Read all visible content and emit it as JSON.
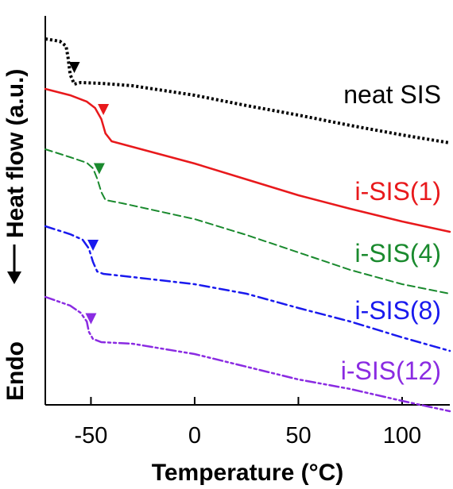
{
  "chart_data": {
    "type": "line",
    "xlabel": "Temperature (°C)",
    "ylabel": "Heat flow (a.u.)",
    "ylabel_endo": "Endo",
    "xlim": [
      -72,
      123
    ],
    "xticks": [
      -50,
      0,
      50,
      100
    ],
    "tick_labels": [
      "-50",
      "0",
      "50",
      "100"
    ],
    "y_axis_ticks": false,
    "grid": false,
    "legend": "inline labels right",
    "series": [
      {
        "name": "neat SIS",
        "color": "#000000",
        "dash": "dotted",
        "marker_x": -58,
        "points": [
          [
            -72,
            29
          ],
          [
            -65,
            32
          ],
          [
            -62,
            38
          ],
          [
            -61,
            53
          ],
          [
            -60,
            74
          ],
          [
            -58,
            86
          ],
          [
            -55,
            84
          ],
          [
            -45,
            85
          ],
          [
            -30,
            88
          ],
          [
            0,
            100
          ],
          [
            25,
            113
          ],
          [
            50,
            125
          ],
          [
            75,
            138
          ],
          [
            100,
            150
          ],
          [
            123,
            160
          ]
        ]
      },
      {
        "name": "i-SIS(1)",
        "color": "#e8191c",
        "dash": "solid",
        "marker_x": -44,
        "points": [
          [
            -72,
            92
          ],
          [
            -60,
            100
          ],
          [
            -52,
            108
          ],
          [
            -48,
            116
          ],
          [
            -45,
            130
          ],
          [
            -43,
            148
          ],
          [
            -40,
            158
          ],
          [
            -30,
            165
          ],
          [
            0,
            186
          ],
          [
            25,
            206
          ],
          [
            50,
            226
          ],
          [
            75,
            243
          ],
          [
            100,
            259
          ],
          [
            123,
            272
          ]
        ]
      },
      {
        "name": "i-SIS(4)",
        "color": "#1a8a2e",
        "dash": "dashed",
        "marker_x": -46,
        "points": [
          [
            -72,
            168
          ],
          [
            -60,
            178
          ],
          [
            -52,
            185
          ],
          [
            -49,
            192
          ],
          [
            -47,
            205
          ],
          [
            -45,
            222
          ],
          [
            -43,
            232
          ],
          [
            -35,
            236
          ],
          [
            0,
            256
          ],
          [
            25,
            276
          ],
          [
            50,
            298
          ],
          [
            75,
            320
          ],
          [
            100,
            338
          ],
          [
            123,
            350
          ]
        ]
      },
      {
        "name": "i-SIS(8)",
        "color": "#1a1aee",
        "dash": "dashdot",
        "marker_x": -49,
        "points": [
          [
            -72,
            265
          ],
          [
            -60,
            275
          ],
          [
            -54,
            282
          ],
          [
            -51,
            293
          ],
          [
            -49,
            310
          ],
          [
            -47,
            322
          ],
          [
            -44,
            325
          ],
          [
            -30,
            329
          ],
          [
            0,
            338
          ],
          [
            25,
            350
          ],
          [
            50,
            368
          ],
          [
            75,
            385
          ],
          [
            100,
            405
          ],
          [
            123,
            422
          ]
        ]
      },
      {
        "name": "i-SIS(12)",
        "color": "#8a2be2",
        "dash": "dashdotdot",
        "marker_x": -50,
        "points": [
          [
            -72,
            354
          ],
          [
            -60,
            365
          ],
          [
            -55,
            374
          ],
          [
            -52,
            385
          ],
          [
            -51,
            398
          ],
          [
            -49,
            407
          ],
          [
            -45,
            411
          ],
          [
            -30,
            413
          ],
          [
            0,
            426
          ],
          [
            25,
            442
          ],
          [
            50,
            458
          ],
          [
            75,
            470
          ],
          [
            100,
            485
          ],
          [
            123,
            498
          ]
        ]
      }
    ],
    "note": "points are [temperature in °C, relative heat-flow offset in arbitrary units; larger = lower on the plot]"
  }
}
